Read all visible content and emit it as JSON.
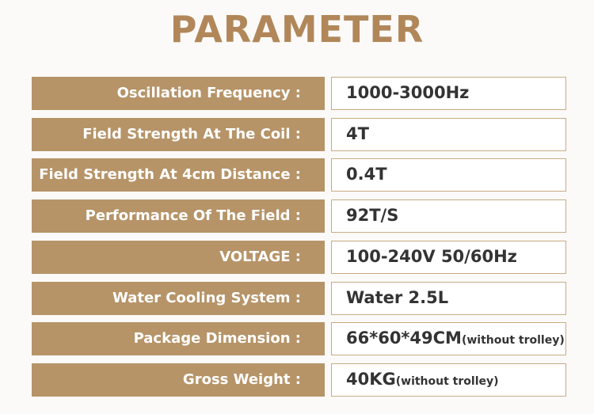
{
  "header": {
    "title": "PARAMETER"
  },
  "table": {
    "rows": [
      {
        "label": "Oscillation Frequency :",
        "value": "1000-3000Hz"
      },
      {
        "label": "Field Strength At The Coil :",
        "value": "4T"
      },
      {
        "label": "Field Strength At 4cm Distance :",
        "value": "0.4T"
      },
      {
        "label": "Performance Of The Field :",
        "value": "92T/S"
      },
      {
        "label": "VOLTAGE :",
        "value": "100-240V 50/60Hz"
      },
      {
        "label": "Water Cooling System :",
        "value": "Water 2.5L"
      },
      {
        "label": "Package Dimension :",
        "value": "66*60*49CM",
        "note": "(without trolley)"
      },
      {
        "label": "Gross Weight :",
        "value": "40KG",
        "note": "(without trolley)"
      }
    ]
  }
}
